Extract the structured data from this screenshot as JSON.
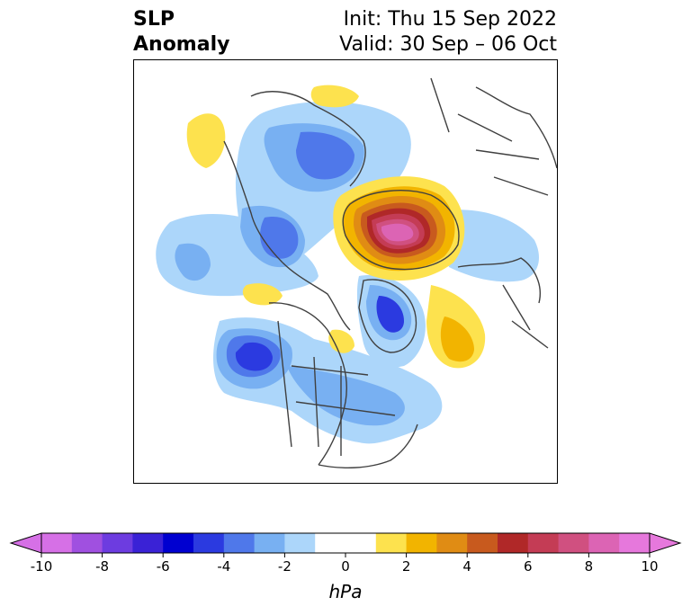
{
  "title": {
    "left_line1": "SLP",
    "left_line2": "Anomaly",
    "right_line1": "Init: Thu 15 Sep 2022",
    "right_line2": "Valid: 30 Sep – 06 Oct"
  },
  "colorbar": {
    "unit": "hPa",
    "ticks": [
      "-10",
      "-8",
      "-6",
      "-4",
      "-2",
      "0",
      "2",
      "4",
      "6",
      "8",
      "10"
    ],
    "colors": [
      "#d670e6",
      "#a050e0",
      "#6d3ce0",
      "#3a22d6",
      "#0000d0",
      "#2b3ae0",
      "#4f78ea",
      "#78b0f2",
      "#acd6fa",
      "#ffffff",
      "#ffffff",
      "#fde24e",
      "#f2b400",
      "#e08c14",
      "#c85a1e",
      "#b02828",
      "#c43c55",
      "#d05080",
      "#dc64b4",
      "#e678dc"
    ]
  },
  "map": {
    "projection": "polar stereographic, northern hemisphere",
    "features": [
      {
        "name": "strong-positive-anomaly-northern-eurasia-arctic",
        "sign": "positive"
      },
      {
        "name": "negative-anomaly-gulf-of-alaska",
        "sign": "negative"
      },
      {
        "name": "negative-anomaly-greenland-east",
        "sign": "negative"
      },
      {
        "name": "negative-anomaly-north-pacific",
        "sign": "negative"
      },
      {
        "name": "positive-anomaly-north-atlantic",
        "sign": "positive"
      }
    ]
  }
}
